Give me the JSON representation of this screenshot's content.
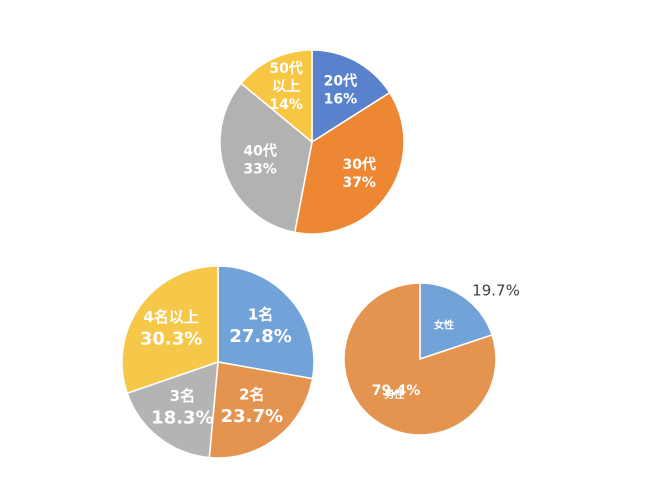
{
  "chart_data": [
    {
      "type": "pie",
      "slices": [
        {
          "label_lines": [
            "20代"
          ],
          "value_text": "16%",
          "value": 16,
          "color": "#5a82cc"
        },
        {
          "label_lines": [
            "30代"
          ],
          "value_text": "37%",
          "value": 37,
          "color": "#ee8734"
        },
        {
          "label_lines": [
            "40代"
          ],
          "value_text": "33%",
          "value": 33,
          "color": "#b2b2b2"
        },
        {
          "label_lines": [
            "50代",
            "以上"
          ],
          "value_text": "14%",
          "value": 14,
          "color": "#f7c744"
        }
      ]
    },
    {
      "type": "pie",
      "slices": [
        {
          "label_lines": [
            "1名"
          ],
          "value_text": "27.8%",
          "value": 27.8,
          "color": "#71a2d8"
        },
        {
          "label_lines": [
            "2名"
          ],
          "value_text": "23.7%",
          "value": 23.7,
          "color": "#e5944f"
        },
        {
          "label_lines": [
            "3名"
          ],
          "value_text": "18.3%",
          "value": 18.3,
          "color": "#b4b4b4"
        },
        {
          "label_lines": [
            "4名以上"
          ],
          "value_text": "30.3%",
          "value": 30.3,
          "color": "#f5c84a"
        }
      ]
    },
    {
      "type": "pie",
      "slices": [
        {
          "label_lines": [
            "女性"
          ],
          "value_text": "19.7%",
          "value": 19.7,
          "color": "#71a2d8"
        },
        {
          "label_lines": [
            "男性"
          ],
          "value_text": "79.4%",
          "value": 79.4,
          "color": "#e5944f"
        }
      ]
    }
  ]
}
